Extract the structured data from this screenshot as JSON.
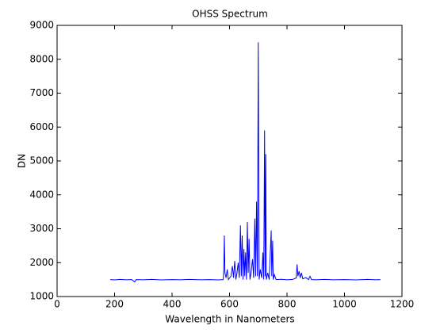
{
  "chart_data": {
    "type": "line",
    "title": "OHSS Spectrum",
    "xlabel": "Wavelength in Nanometers",
    "ylabel": "DN",
    "xlim": [
      0,
      1200
    ],
    "xticks": [
      0,
      200,
      400,
      600,
      800,
      1000,
      1200
    ],
    "ylim": [
      1000,
      9000
    ],
    "yticks": [
      1000,
      2000,
      3000,
      4000,
      5000,
      6000,
      7000,
      8000,
      9000
    ],
    "series": [
      {
        "color": "#0000ff",
        "x": [
          185,
          200,
          220,
          240,
          260,
          270,
          275,
          300,
          330,
          360,
          400,
          430,
          460,
          500,
          530,
          560,
          578,
          580,
          582,
          584,
          588,
          592,
          596,
          605,
          610,
          614,
          618,
          622,
          626,
          630,
          634,
          638,
          641,
          644,
          647,
          650,
          653,
          656,
          659,
          662,
          665,
          668,
          671,
          675,
          680,
          684,
          688,
          691,
          694,
          697,
          700,
          703,
          707,
          712,
          716,
          719,
          722,
          724,
          726,
          728,
          733,
          738,
          745,
          747,
          750,
          752,
          756,
          762,
          780,
          800,
          820,
          832,
          835,
          838,
          842,
          846,
          850,
          855,
          865,
          875,
          880,
          885,
          900,
          930,
          960,
          1000,
          1040,
          1080,
          1110,
          1125
        ],
        "values": [
          1500,
          1490,
          1505,
          1495,
          1500,
          1430,
          1500,
          1495,
          1505,
          1490,
          1500,
          1495,
          1505,
          1495,
          1500,
          1490,
          1500,
          1800,
          2800,
          1700,
          1550,
          1800,
          1500,
          1600,
          1900,
          1550,
          2050,
          1500,
          1700,
          2000,
          1550,
          3100,
          1600,
          2800,
          1500,
          2400,
          1600,
          2300,
          1500,
          3200,
          1700,
          2700,
          1500,
          1700,
          2100,
          1550,
          3300,
          1600,
          3800,
          1600,
          8500,
          1500,
          1800,
          1550,
          2300,
          1500,
          5900,
          1600,
          5200,
          1500,
          1700,
          1500,
          2950,
          1600,
          2650,
          1500,
          1650,
          1500,
          1510,
          1495,
          1505,
          1550,
          1950,
          1600,
          1750,
          1550,
          1700,
          1520,
          1560,
          1500,
          1600,
          1500,
          1495,
          1505,
          1495,
          1500,
          1490,
          1505,
          1495,
          1500
        ]
      }
    ]
  }
}
